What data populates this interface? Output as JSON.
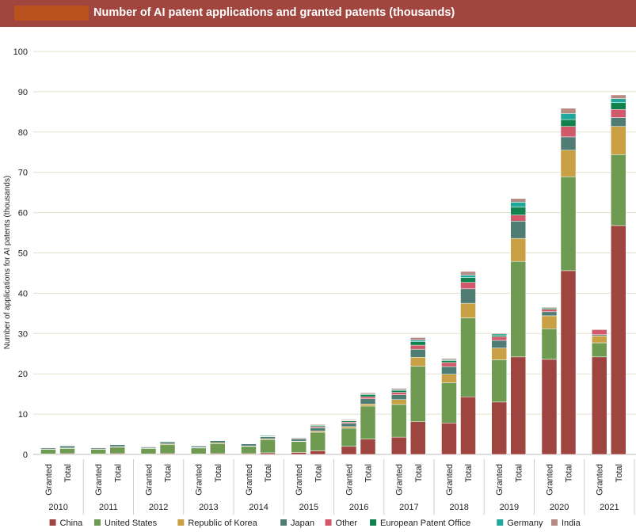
{
  "header": {
    "title": "Number of AI patent applications and granted patents (thousands)",
    "logo_color": "#b9521c",
    "bar_color": "#a0463f"
  },
  "chart_data": {
    "type": "bar",
    "stacked": true,
    "title": "Number of AI patent applications and granted patents (thousands)",
    "ylabel": "Number of applications for AI patents (thousands)",
    "xlabel": "",
    "ylim": [
      0,
      100
    ],
    "yticks": [
      0,
      10,
      20,
      30,
      40,
      50,
      60,
      70,
      80,
      90,
      100
    ],
    "years": [
      "2010",
      "2011",
      "2012",
      "2013",
      "2014",
      "2015",
      "2016",
      "2017",
      "2018",
      "2019",
      "2020",
      "2021"
    ],
    "sub_labels": [
      "Granted",
      "Total"
    ],
    "legend_position": "bottom",
    "series": [
      {
        "name": "China",
        "color": "#9e4540",
        "values": [
          0.1,
          0.2,
          0.1,
          0.2,
          0.1,
          0.2,
          0.1,
          0.2,
          0.2,
          0.4,
          0.5,
          0.9,
          2.0,
          3.8,
          4.3,
          8.1,
          7.8,
          14.3,
          13.0,
          24.2,
          23.6,
          45.6,
          24.2,
          56.8
        ]
      },
      {
        "name": "United States",
        "color": "#6f9a52",
        "values": [
          1.2,
          1.3,
          1.2,
          1.6,
          1.4,
          2.2,
          1.5,
          2.5,
          1.8,
          3.3,
          2.7,
          4.6,
          4.5,
          8.2,
          8.1,
          13.8,
          10.0,
          19.6,
          10.5,
          23.7,
          7.6,
          23.3,
          3.5,
          17.6
        ]
      },
      {
        "name": "Republic of Korea",
        "color": "#c9a043",
        "values": [
          0.05,
          0.1,
          0.05,
          0.1,
          0.1,
          0.2,
          0.1,
          0.2,
          0.1,
          0.2,
          0.1,
          0.3,
          0.4,
          0.5,
          1.2,
          2.2,
          2.1,
          3.6,
          2.9,
          5.7,
          3.2,
          6.6,
          1.7,
          7.0
        ]
      },
      {
        "name": "Japan",
        "color": "#4f7d74",
        "values": [
          0.3,
          0.5,
          0.3,
          0.5,
          0.3,
          0.5,
          0.4,
          0.5,
          0.5,
          0.5,
          0.5,
          0.8,
          0.8,
          1.3,
          1.2,
          2.0,
          1.9,
          3.6,
          1.9,
          4.3,
          1.0,
          3.3,
          0.3,
          2.2
        ]
      },
      {
        "name": "Other",
        "color": "#d1596a",
        "values": [
          0.05,
          0.1,
          0.05,
          0.1,
          0.05,
          0.1,
          0.05,
          0.1,
          0.1,
          0.1,
          0.2,
          0.3,
          0.3,
          0.5,
          0.6,
          1.0,
          1.0,
          1.6,
          0.9,
          1.5,
          0.6,
          2.6,
          1.2,
          2.0
        ]
      },
      {
        "name": "European Patent Office",
        "color": "#11814e",
        "values": [
          0.05,
          0.1,
          0.05,
          0.1,
          0.05,
          0.1,
          0.05,
          0.1,
          0.1,
          0.2,
          0.2,
          0.3,
          0.3,
          0.5,
          0.5,
          0.9,
          0.5,
          1.2,
          0.4,
          2.0,
          0.3,
          1.7,
          0.0,
          1.7
        ]
      },
      {
        "name": "Germany",
        "color": "#1fa79a",
        "values": [
          0.0,
          0.0,
          0.0,
          0.0,
          0.0,
          0.0,
          0.0,
          0.0,
          0.0,
          0.0,
          0.05,
          0.1,
          0.1,
          0.2,
          0.2,
          0.4,
          0.2,
          0.6,
          0.3,
          1.2,
          0.1,
          1.5,
          0.0,
          1.0
        ]
      },
      {
        "name": "India",
        "color": "#b58a80",
        "values": [
          0.0,
          0.1,
          0.0,
          0.1,
          0.0,
          0.0,
          0.0,
          0.0,
          0.0,
          0.1,
          0.1,
          0.2,
          0.2,
          0.3,
          0.3,
          0.6,
          0.3,
          0.9,
          0.2,
          0.9,
          0.2,
          1.3,
          0.2,
          0.9
        ]
      }
    ]
  }
}
